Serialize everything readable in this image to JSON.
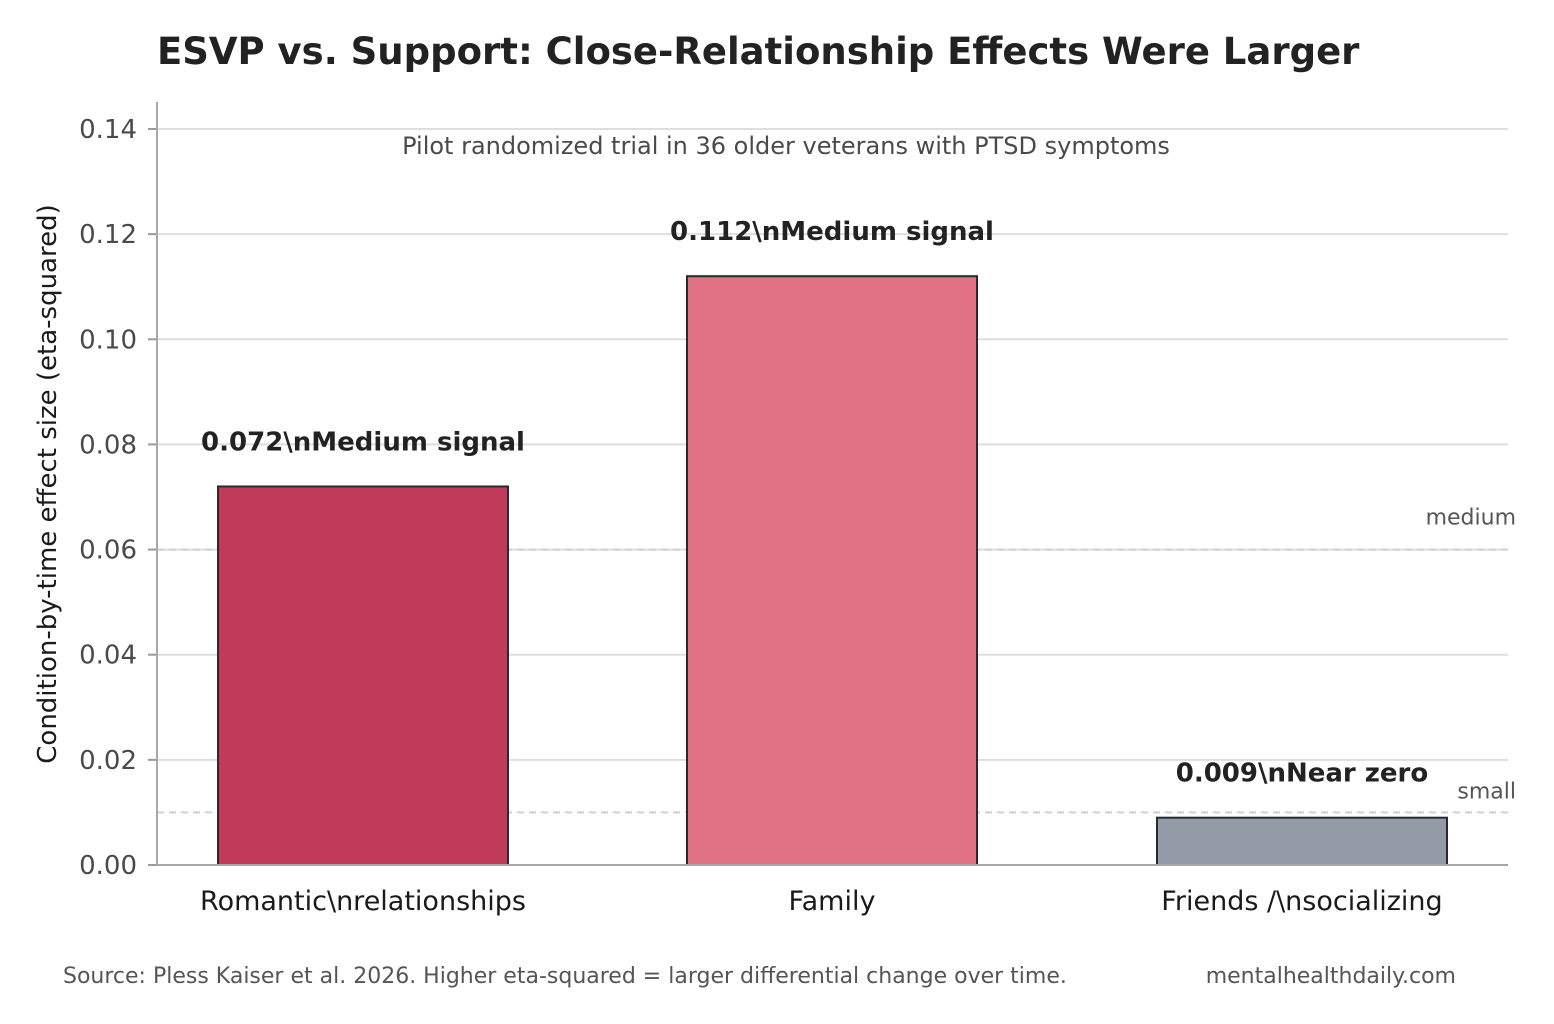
{
  "chart_data": {
    "type": "bar",
    "title": "ESVP vs. Support: Close-Relationship Effects Were Larger",
    "subtitle": "Pilot randomized trial in 36 older veterans with PTSD symptoms",
    "ylabel": "Condition-by-time effect size (eta-squared)",
    "xlabel": "",
    "ylim": [
      0,
      0.145
    ],
    "yticks": [
      0.0,
      0.02,
      0.04,
      0.06,
      0.08,
      0.1,
      0.12,
      0.14
    ],
    "ytick_labels": [
      "0.00",
      "0.02",
      "0.04",
      "0.06",
      "0.08",
      "0.10",
      "0.12",
      "0.14"
    ],
    "categories": [
      "Romantic\\nrelationships",
      "Family",
      "Friends /\\nsocializing"
    ],
    "values": [
      0.072,
      0.112,
      0.009
    ],
    "bar_labels": [
      "0.072\\nMedium signal",
      "0.112\\nMedium signal",
      "0.009\\nNear zero"
    ],
    "colors": [
      "#c13a5a",
      "#e07083",
      "#939aa8"
    ],
    "reference_lines": [
      {
        "label": "medium",
        "value": 0.06
      },
      {
        "label": "small",
        "value": 0.01
      }
    ],
    "grid": true
  },
  "footer": {
    "source": "Source: Pless Kaiser et al. 2026. Higher eta-squared = larger differential change over time.",
    "site": "mentalhealthdaily.com"
  }
}
